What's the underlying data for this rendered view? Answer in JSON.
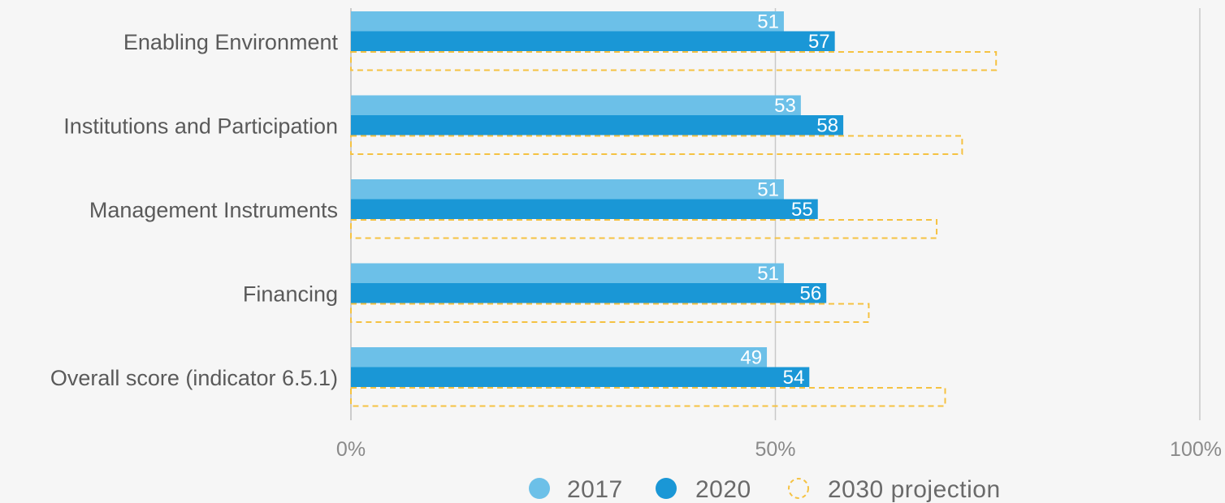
{
  "chart_data": {
    "type": "bar",
    "orientation": "horizontal",
    "title": "",
    "xlabel": "",
    "ylabel": "",
    "xlim": [
      0,
      100
    ],
    "x_ticks": [
      "0%",
      "50%",
      "100%"
    ],
    "grid": "vertical at 0, 50, 100",
    "legend_placement": "bottom",
    "categories": [
      "Enabling Environment",
      "Institutions and Participation",
      "Management Instruments",
      "Financing",
      "Overall score (indicator 6.5.1)"
    ],
    "series": [
      {
        "name": "2017",
        "values": [
          51,
          53,
          51,
          51,
          49
        ],
        "color": "#6cc0e8",
        "style": "solid"
      },
      {
        "name": "2020",
        "values": [
          57,
          58,
          55,
          56,
          54
        ],
        "color": "#1a97d6",
        "style": "solid"
      },
      {
        "name": "2030 projection",
        "values": [
          76,
          72,
          69,
          61,
          70
        ],
        "color": "#f5c242",
        "style": "dashed-outline"
      }
    ]
  }
}
